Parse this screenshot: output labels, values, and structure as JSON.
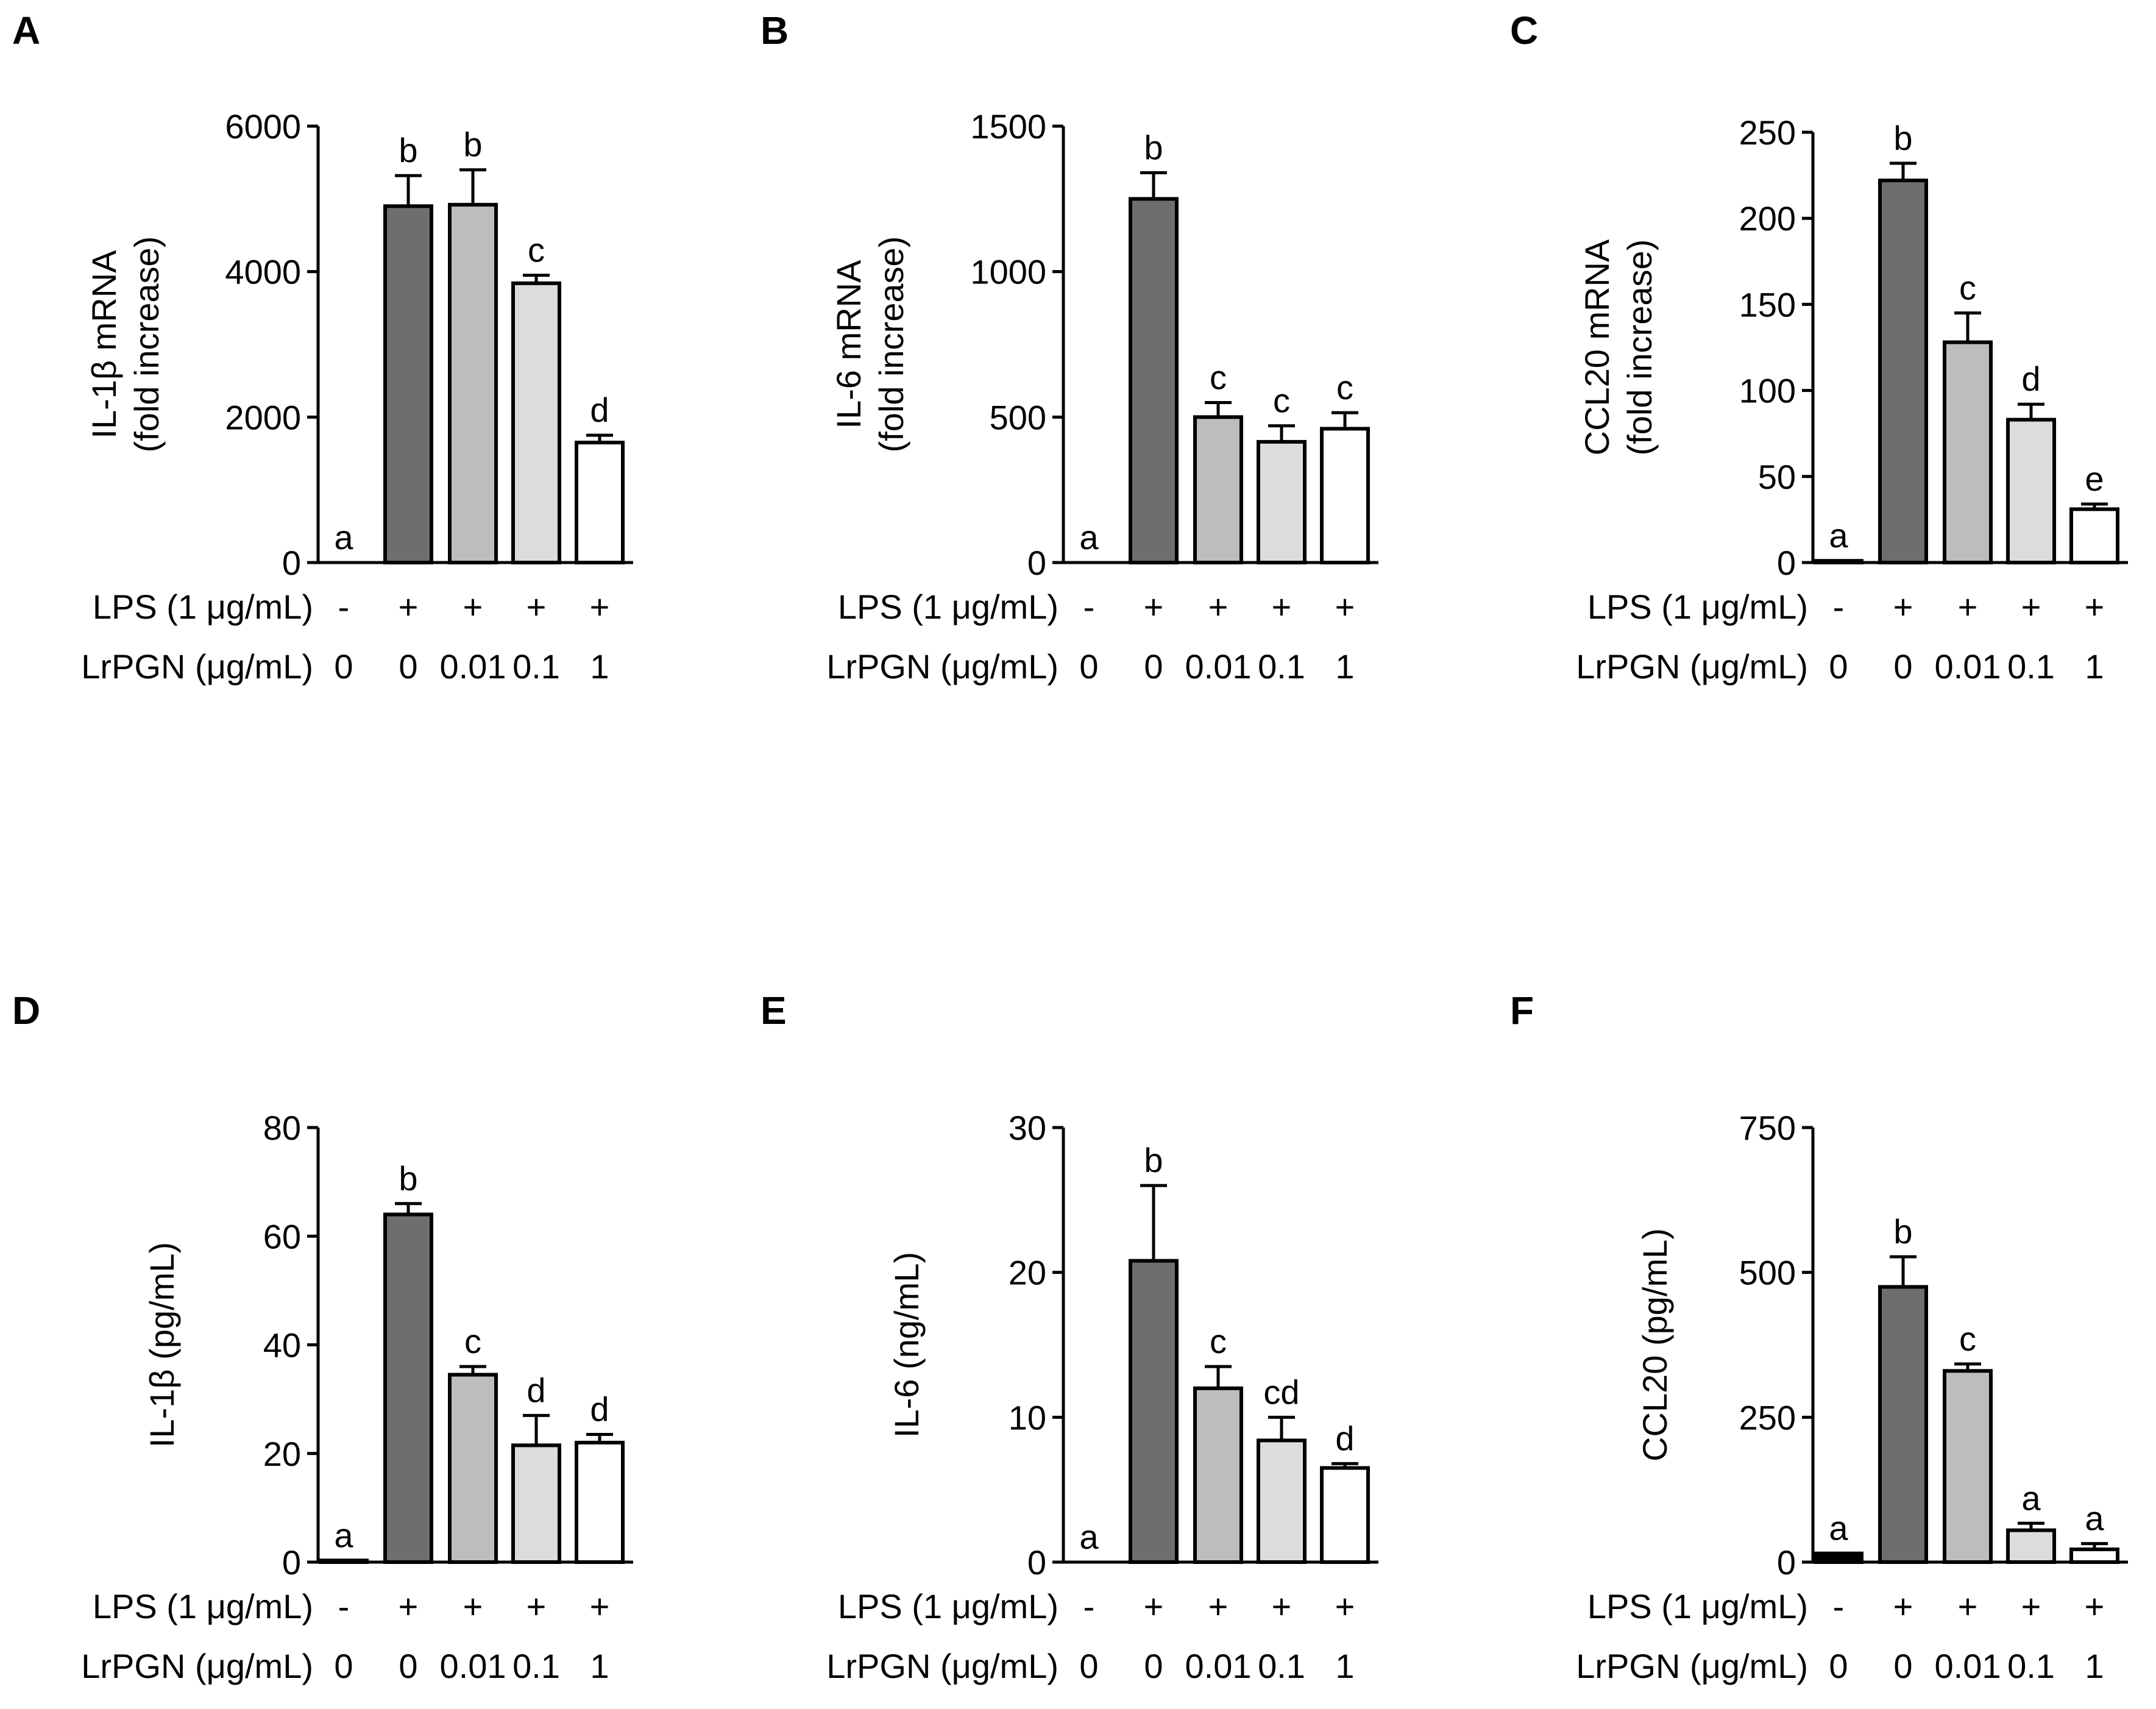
{
  "colors": {
    "axis": "#000000",
    "lps_only": "#6e6e6e",
    "pgn_001": "#bdbdbd",
    "pgn_01": "#dcdcdc",
    "pgn_1": "#ffffff",
    "control": "#000000"
  },
  "rows": {
    "lps_label": "LPS (1 μg/mL)",
    "lps_values": [
      "-",
      "+",
      "+",
      "+",
      "+"
    ],
    "pgn_label": "LrPGN (μg/mL)",
    "pgn_values": [
      "0",
      "0",
      "0.01",
      "0.1",
      "1"
    ]
  },
  "chart_data": [
    {
      "panel": "A",
      "type": "bar",
      "ylabel_line1": "IL-1β mRNA",
      "ylabel_line2": "(fold increase)",
      "ylim": [
        0,
        6000
      ],
      "yticks": [
        0,
        2000,
        4000,
        6000
      ],
      "values": [
        0,
        4900,
        4920,
        3840,
        1650
      ],
      "errors": [
        0,
        420,
        480,
        110,
        100
      ],
      "letters": [
        "a",
        "b",
        "b",
        "c",
        "d"
      ]
    },
    {
      "panel": "B",
      "type": "bar",
      "ylabel_line1": "IL-6 mRNA",
      "ylabel_line2": "(fold increase)",
      "ylim": [
        0,
        1500
      ],
      "yticks": [
        0,
        500,
        1000,
        1500
      ],
      "values": [
        0,
        1250,
        500,
        415,
        460
      ],
      "errors": [
        0,
        90,
        50,
        55,
        55
      ],
      "letters": [
        "a",
        "b",
        "c",
        "c",
        "c"
      ]
    },
    {
      "panel": "C",
      "type": "bar",
      "ylabel_line1": "CCL20 mRNA",
      "ylabel_line2": "(fold increase)",
      "ylim": [
        0,
        250
      ],
      "yticks": [
        0,
        50,
        100,
        150,
        200,
        250
      ],
      "values": [
        1,
        222,
        128,
        83,
        31
      ],
      "errors": [
        0,
        10,
        17,
        9,
        3
      ],
      "letters": [
        "a",
        "b",
        "c",
        "d",
        "e"
      ]
    },
    {
      "panel": "D",
      "type": "bar",
      "ylabel_line1": "IL-1β (pg/mL)",
      "ylabel_line2": "",
      "ylim": [
        0,
        80
      ],
      "yticks": [
        0,
        20,
        40,
        60,
        80
      ],
      "values": [
        0.3,
        64,
        34.5,
        21.5,
        22
      ],
      "errors": [
        0,
        2,
        1.5,
        5.5,
        1.5
      ],
      "letters": [
        "a",
        "b",
        "c",
        "d",
        "d"
      ]
    },
    {
      "panel": "E",
      "type": "bar",
      "ylabel_line1": "IL-6 (ng/mL)",
      "ylabel_line2": "",
      "ylim": [
        0,
        30
      ],
      "yticks": [
        0,
        10,
        20,
        30
      ],
      "values": [
        0,
        20.8,
        12,
        8.4,
        6.5
      ],
      "errors": [
        0,
        5.2,
        1.5,
        1.6,
        0.3
      ],
      "letters": [
        "a",
        "b",
        "c",
        "cd",
        "d"
      ]
    },
    {
      "panel": "F",
      "type": "bar",
      "ylabel_line1": "CCL20 (pg/mL)",
      "ylabel_line2": "",
      "ylim": [
        0,
        750
      ],
      "yticks": [
        0,
        250,
        500,
        750
      ],
      "values": [
        15,
        475,
        330,
        55,
        22
      ],
      "errors": [
        0,
        52,
        12,
        12,
        10
      ],
      "letters": [
        "a",
        "b",
        "c",
        "a",
        "a"
      ]
    }
  ]
}
